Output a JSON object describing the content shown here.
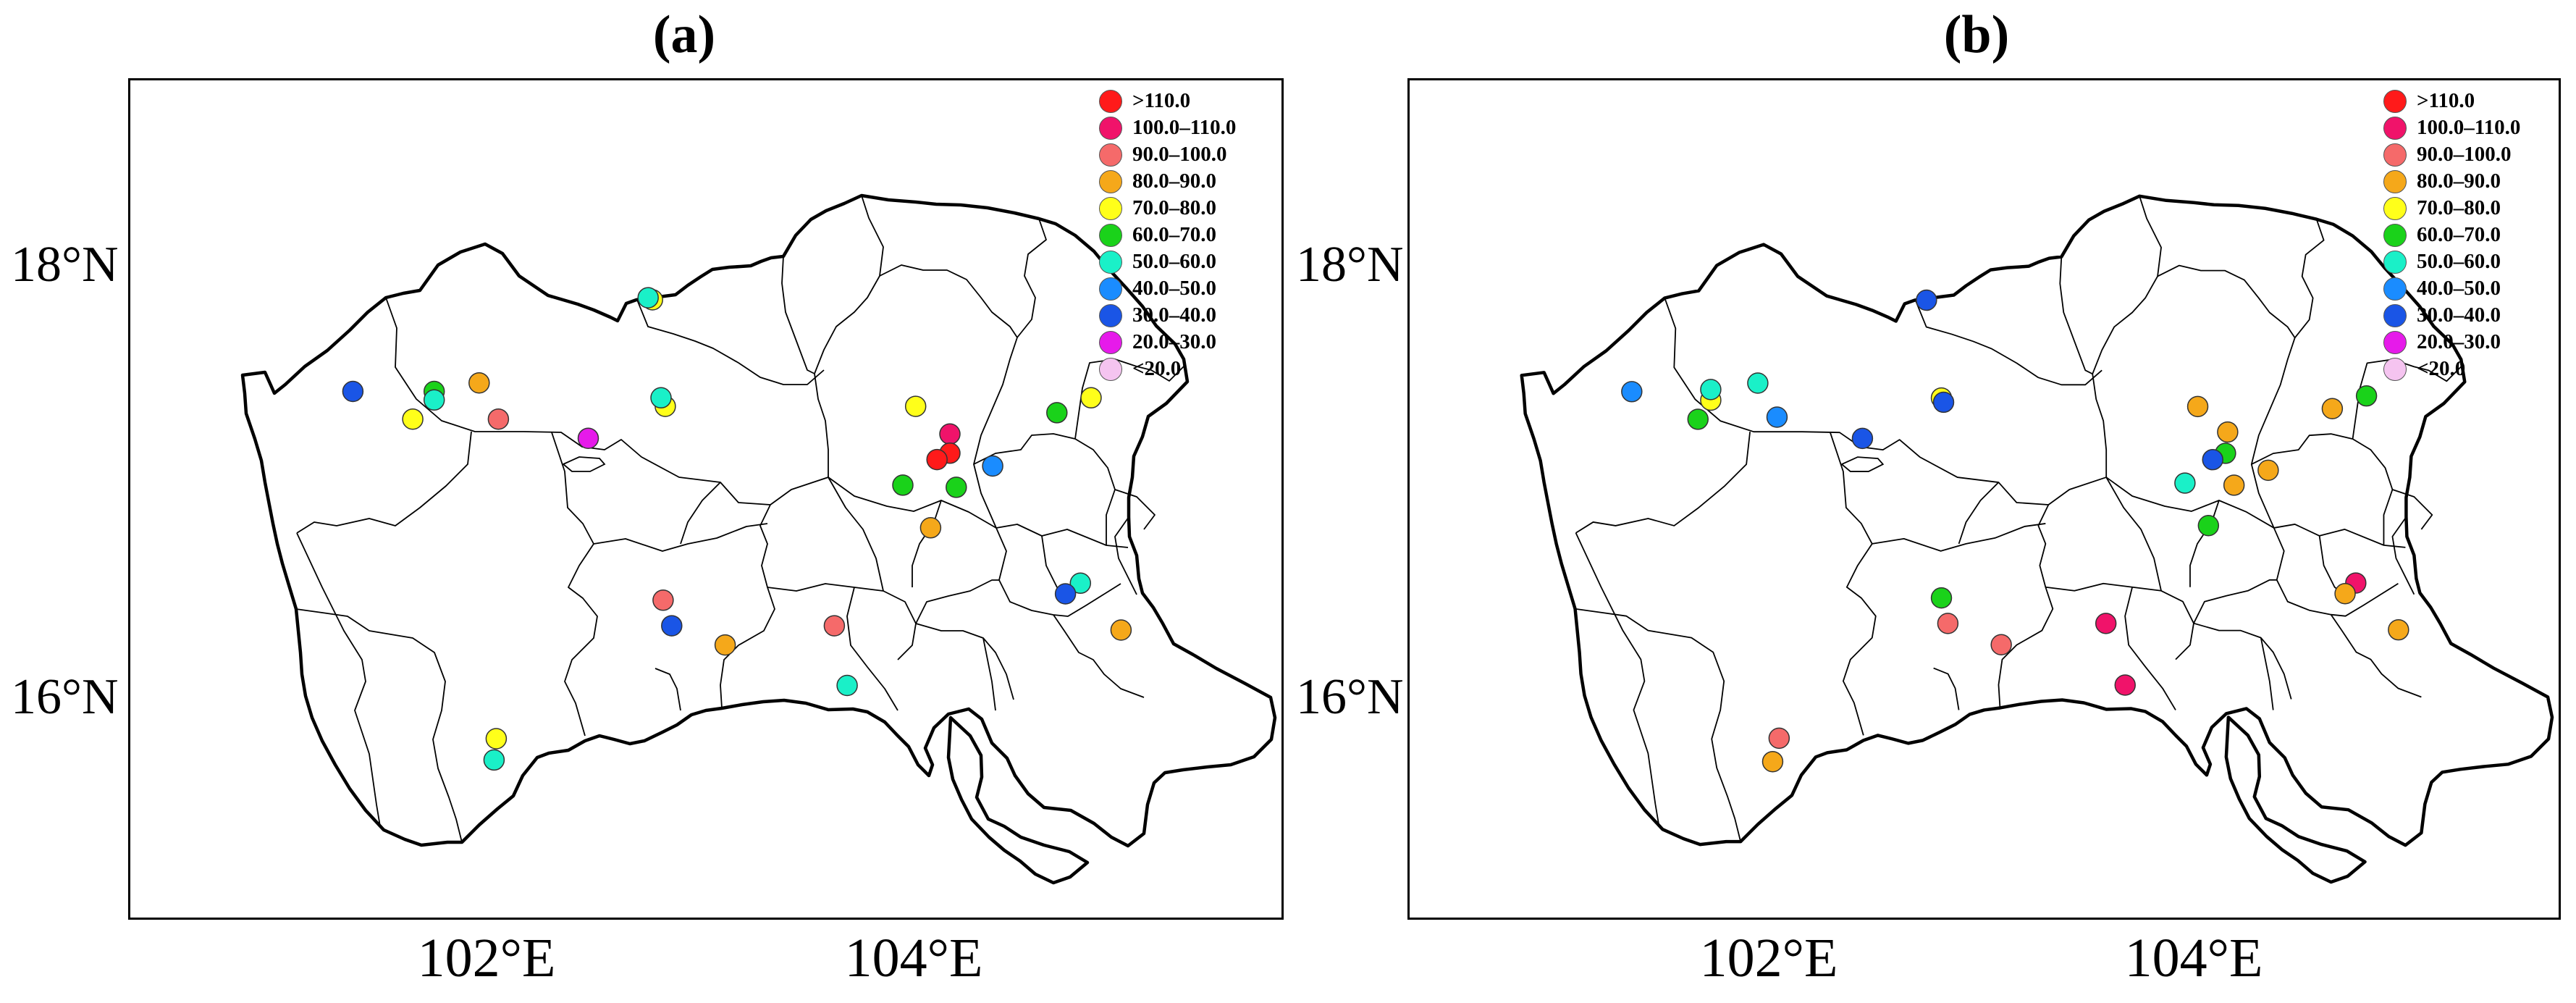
{
  "colors": {
    "gt110": "#ff1a1a",
    "c100_110": "#f0136a",
    "c90_100": "#f56a6a",
    "c80_90": "#f5a81a",
    "c70_80": "#ffff1a",
    "c60_70": "#1ad21a",
    "c50_60": "#1af0c8",
    "c40_50": "#1a8cff",
    "c30_40": "#1a55e6",
    "c20_30": "#e61aea",
    "lt20": "#f5c4f0"
  },
  "legend": [
    {
      "label": ">110.0",
      "color_key": "gt110"
    },
    {
      "label": "100.0–110.0",
      "color_key": "c100_110"
    },
    {
      "label": "90.0–100.0",
      "color_key": "c90_100"
    },
    {
      "label": "80.0–90.0",
      "color_key": "c80_90"
    },
    {
      "label": "70.0–80.0",
      "color_key": "c70_80"
    },
    {
      "label": "60.0–70.0",
      "color_key": "c60_70"
    },
    {
      "label": "50.0–60.0",
      "color_key": "c50_60"
    },
    {
      "label": "40.0–50.0",
      "color_key": "c40_50"
    },
    {
      "label": "30.0–40.0",
      "color_key": "c30_40"
    },
    {
      "label": "20.0–30.0",
      "color_key": "c20_30"
    },
    {
      "label": "<20.0",
      "color_key": "lt20"
    }
  ],
  "axes": {
    "lon_range": [
      100.3,
      105.7
    ],
    "lat_range": [
      14.95,
      18.9
    ],
    "x_ticks": [
      {
        "value": 102,
        "label": "102°E"
      },
      {
        "value": 104,
        "label": "104°E"
      }
    ],
    "y_ticks": [
      {
        "value": 18,
        "label": "18°N"
      },
      {
        "value": 16,
        "label": "16°N"
      }
    ]
  },
  "panels": [
    {
      "title": "(a)",
      "stations": [
        {
          "lon": 101.34,
          "lat": 17.44,
          "class": "c30_40"
        },
        {
          "lon": 101.62,
          "lat": 17.31,
          "class": "c70_80"
        },
        {
          "lon": 101.72,
          "lat": 17.44,
          "class": "c60_70"
        },
        {
          "lon": 101.72,
          "lat": 17.4,
          "class": "c50_60"
        },
        {
          "lon": 101.93,
          "lat": 17.48,
          "class": "c80_90"
        },
        {
          "lon": 102.02,
          "lat": 17.31,
          "class": "c90_100"
        },
        {
          "lon": 102.44,
          "lat": 17.22,
          "class": "c20_30"
        },
        {
          "lon": 102.74,
          "lat": 17.87,
          "class": "c70_80"
        },
        {
          "lon": 102.72,
          "lat": 17.88,
          "class": "c50_60"
        },
        {
          "lon": 102.8,
          "lat": 17.37,
          "class": "c70_80"
        },
        {
          "lon": 102.78,
          "lat": 17.41,
          "class": "c50_60"
        },
        {
          "lon": 103.97,
          "lat": 17.37,
          "class": "c70_80"
        },
        {
          "lon": 104.13,
          "lat": 17.24,
          "class": "c100_110"
        },
        {
          "lon": 104.13,
          "lat": 17.15,
          "class": "gt110"
        },
        {
          "lon": 104.07,
          "lat": 17.12,
          "class": "gt110"
        },
        {
          "lon": 103.91,
          "lat": 17.0,
          "class": "c60_70"
        },
        {
          "lon": 104.16,
          "lat": 16.99,
          "class": "c60_70"
        },
        {
          "lon": 104.33,
          "lat": 17.09,
          "class": "c40_50"
        },
        {
          "lon": 104.63,
          "lat": 17.34,
          "class": "c60_70"
        },
        {
          "lon": 104.79,
          "lat": 17.41,
          "class": "c70_80"
        },
        {
          "lon": 104.04,
          "lat": 16.8,
          "class": "c80_90"
        },
        {
          "lon": 104.74,
          "lat": 16.54,
          "class": "c50_60"
        },
        {
          "lon": 104.67,
          "lat": 16.49,
          "class": "c30_40"
        },
        {
          "lon": 104.93,
          "lat": 16.32,
          "class": "c80_90"
        },
        {
          "lon": 102.79,
          "lat": 16.46,
          "class": "c90_100"
        },
        {
          "lon": 102.83,
          "lat": 16.34,
          "class": "c30_40"
        },
        {
          "lon": 103.08,
          "lat": 16.25,
          "class": "c80_90"
        },
        {
          "lon": 103.59,
          "lat": 16.34,
          "class": "c90_100"
        },
        {
          "lon": 103.65,
          "lat": 16.06,
          "class": "c50_60"
        },
        {
          "lon": 102.01,
          "lat": 15.81,
          "class": "c70_80"
        },
        {
          "lon": 102.0,
          "lat": 15.71,
          "class": "c50_60"
        }
      ]
    },
    {
      "title": "(b)",
      "stations": [
        {
          "lon": 101.34,
          "lat": 17.44,
          "class": "c40_50"
        },
        {
          "lon": 101.65,
          "lat": 17.31,
          "class": "c60_70"
        },
        {
          "lon": 101.71,
          "lat": 17.4,
          "class": "c70_80"
        },
        {
          "lon": 101.71,
          "lat": 17.45,
          "class": "c50_60"
        },
        {
          "lon": 101.93,
          "lat": 17.48,
          "class": "c50_60"
        },
        {
          "lon": 102.02,
          "lat": 17.32,
          "class": "c40_50"
        },
        {
          "lon": 102.42,
          "lat": 17.22,
          "class": "c30_40"
        },
        {
          "lon": 102.72,
          "lat": 17.87,
          "class": "c30_40"
        },
        {
          "lon": 102.79,
          "lat": 17.41,
          "class": "c70_80"
        },
        {
          "lon": 102.8,
          "lat": 17.39,
          "class": "c30_40"
        },
        {
          "lon": 103.99,
          "lat": 17.37,
          "class": "c80_90"
        },
        {
          "lon": 104.13,
          "lat": 17.25,
          "class": "c80_90"
        },
        {
          "lon": 104.12,
          "lat": 17.15,
          "class": "c60_70"
        },
        {
          "lon": 104.06,
          "lat": 17.12,
          "class": "c30_40"
        },
        {
          "lon": 103.93,
          "lat": 17.01,
          "class": "c50_60"
        },
        {
          "lon": 104.16,
          "lat": 17.0,
          "class": "c80_90"
        },
        {
          "lon": 104.32,
          "lat": 17.07,
          "class": "c80_90"
        },
        {
          "lon": 104.62,
          "lat": 17.36,
          "class": "c80_90"
        },
        {
          "lon": 104.78,
          "lat": 17.42,
          "class": "c60_70"
        },
        {
          "lon": 104.04,
          "lat": 16.81,
          "class": "c60_70"
        },
        {
          "lon": 104.73,
          "lat": 16.54,
          "class": "c100_110"
        },
        {
          "lon": 104.68,
          "lat": 16.49,
          "class": "c80_90"
        },
        {
          "lon": 104.93,
          "lat": 16.32,
          "class": "c80_90"
        },
        {
          "lon": 102.79,
          "lat": 16.47,
          "class": "c60_70"
        },
        {
          "lon": 102.82,
          "lat": 16.35,
          "class": "c90_100"
        },
        {
          "lon": 103.07,
          "lat": 16.25,
          "class": "c90_100"
        },
        {
          "lon": 103.56,
          "lat": 16.35,
          "class": "c100_110"
        },
        {
          "lon": 103.65,
          "lat": 16.06,
          "class": "c100_110"
        },
        {
          "lon": 102.03,
          "lat": 15.81,
          "class": "c90_100"
        },
        {
          "lon": 102.0,
          "lat": 15.7,
          "class": "c80_90"
        }
      ]
    }
  ]
}
